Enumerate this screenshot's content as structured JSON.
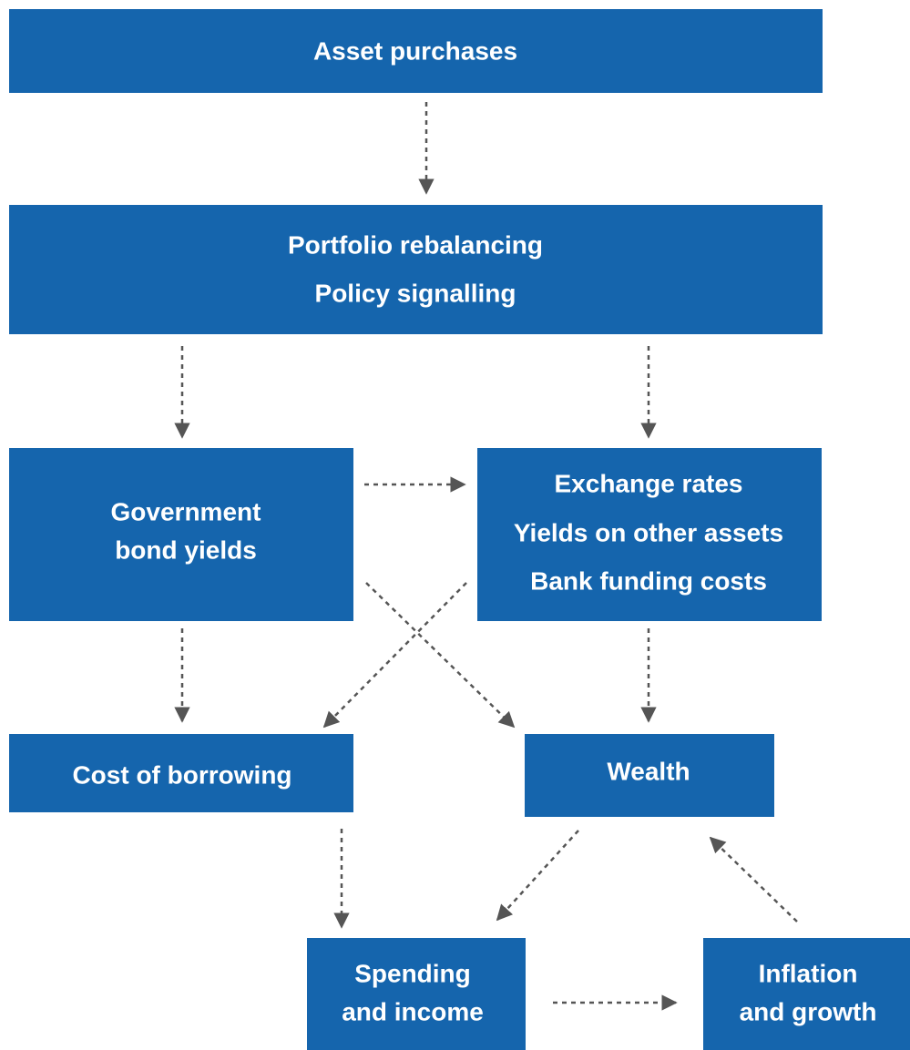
{
  "nodes": [
    {
      "lines": [
        "Asset purchases"
      ]
    },
    {
      "lines": [
        "Portfolio rebalancing",
        "Policy signalling"
      ]
    },
    {
      "lines": [
        "Government",
        "bond yields"
      ]
    },
    {
      "lines": [
        "Exchange rates",
        "Yields on other assets",
        "Bank funding costs"
      ]
    },
    {
      "lines": [
        "Cost of borrowing"
      ]
    },
    {
      "lines": [
        "Wealth"
      ]
    },
    {
      "lines": [
        "Spending",
        "and income"
      ]
    },
    {
      "lines": [
        "Inflation",
        "and growth"
      ]
    }
  ]
}
